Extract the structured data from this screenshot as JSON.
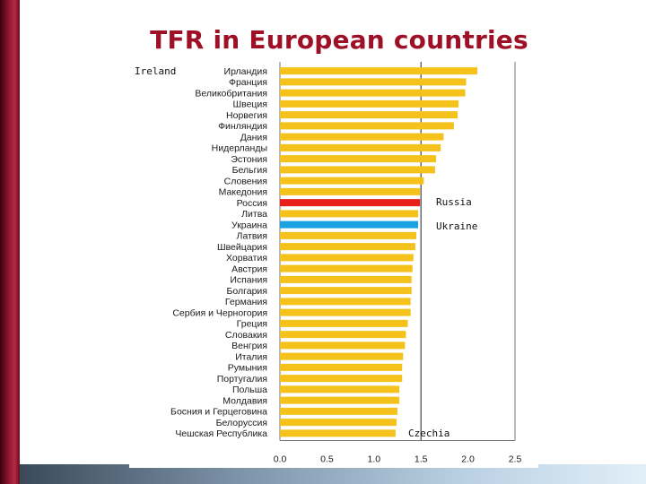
{
  "slide": {
    "title": "TFR in European countries"
  },
  "chart_data": {
    "type": "bar",
    "orientation": "horizontal",
    "categories": [
      "Ирландия",
      "Франция",
      "Великобритания",
      "Швеция",
      "Норвегия",
      "Финляндия",
      "Дания",
      "Нидерланды",
      "Эстония",
      "Бельгия",
      "Словения",
      "Македония",
      "Россия",
      "Литва",
      "Украина",
      "Латвия",
      "Швейцария",
      "Хорватия",
      "Австрия",
      "Испания",
      "Болгария",
      "Германия",
      "Сербия и Черногория",
      "Греция",
      "Словакия",
      "Венгрия",
      "Италия",
      "Румыния",
      "Португалия",
      "Польша",
      "Молдавия",
      "Босния и Герцеговина",
      "Белоруссия",
      "Чешская Республика"
    ],
    "values": [
      2.1,
      1.98,
      1.97,
      1.9,
      1.89,
      1.85,
      1.74,
      1.71,
      1.66,
      1.65,
      1.53,
      1.49,
      1.49,
      1.47,
      1.47,
      1.45,
      1.44,
      1.42,
      1.41,
      1.4,
      1.4,
      1.39,
      1.39,
      1.36,
      1.34,
      1.33,
      1.31,
      1.3,
      1.3,
      1.27,
      1.27,
      1.25,
      1.24,
      1.23
    ],
    "highlight": {
      "Россия": "#e8201c",
      "Украина": "#1aa3e0"
    },
    "bar_color": "#f5c21b",
    "xlim": [
      0,
      2.5
    ],
    "xticks": [
      "0.0",
      "0.5",
      "1.0",
      "1.5",
      "2.0",
      "2.5"
    ],
    "xtick_values": [
      0,
      0.5,
      1.0,
      1.5,
      2.0,
      2.5
    ],
    "reference_line": 1.5,
    "grid": "vertical lines at 0, 1.5, 2.5",
    "annotations": {
      "top_left": "Ireland",
      "russia": "Russia",
      "ukraine": "Ukraine",
      "bottom": "Czechia"
    }
  }
}
